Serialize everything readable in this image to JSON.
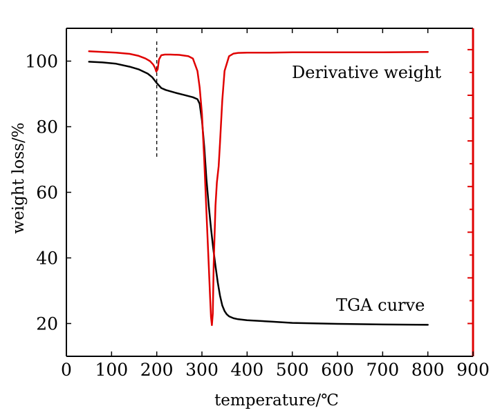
{
  "chart_data": {
    "type": "line",
    "title": "",
    "xlabel": "temperature/℃",
    "ylabel": "weight loss/%",
    "xlim": [
      0,
      900
    ],
    "ylim": [
      10,
      110
    ],
    "x_ticks": [
      0,
      100,
      200,
      300,
      400,
      500,
      600,
      700,
      800,
      900
    ],
    "y_ticks": [
      20,
      40,
      60,
      80,
      100
    ],
    "grid": false,
    "legend": "none",
    "secondary_axis": {
      "side": "right",
      "color": "#e00000",
      "ticks_labeled": false
    },
    "annotations": [
      {
        "text": "Derivative weight",
        "series": "derivative"
      },
      {
        "text": "TGA curve",
        "series": "tga"
      }
    ],
    "marker_line": {
      "x": 200,
      "y_from": 70.5,
      "y_to": 106,
      "style": "dashed"
    },
    "series": [
      {
        "id": "tga",
        "color": "#000000",
        "axis": "left",
        "x": [
          50,
          80,
          110,
          140,
          160,
          180,
          190,
          200,
          210,
          220,
          240,
          260,
          280,
          290,
          295,
          300,
          305,
          310,
          315,
          320,
          325,
          330,
          335,
          340,
          345,
          350,
          355,
          360,
          370,
          380,
          400,
          450,
          500,
          600,
          700,
          800
        ],
        "y": [
          99.8,
          99.6,
          99.2,
          98.3,
          97.5,
          96.2,
          95.1,
          93.3,
          91.8,
          91.2,
          90.4,
          89.7,
          89.0,
          88.4,
          87.0,
          82.0,
          74.0,
          64.0,
          56.0,
          49.0,
          43.0,
          37.5,
          32.5,
          28.5,
          25.5,
          23.8,
          22.8,
          22.2,
          21.6,
          21.3,
          21.0,
          20.6,
          20.2,
          19.9,
          19.7,
          19.6
        ]
      },
      {
        "id": "derivative",
        "color": "#e00000",
        "axis": "right",
        "x": [
          50,
          80,
          110,
          140,
          160,
          175,
          185,
          192,
          196,
          199,
          202,
          205,
          210,
          218,
          230,
          250,
          270,
          280,
          290,
          295,
          300,
          305,
          310,
          315,
          318,
          320,
          322,
          324,
          326,
          330,
          333,
          337,
          340,
          345,
          350,
          360,
          370,
          380,
          400,
          450,
          500,
          600,
          700,
          800
        ],
        "y": [
          103.0,
          102.8,
          102.6,
          102.2,
          101.6,
          100.8,
          100.0,
          99.0,
          98.0,
          96.8,
          97.5,
          100.5,
          101.8,
          102.0,
          102.0,
          101.9,
          101.5,
          100.8,
          97.0,
          92.0,
          84.0,
          70.0,
          54.0,
          38.0,
          28.0,
          22.0,
          19.5,
          23.0,
          38.0,
          56.0,
          63.0,
          68.0,
          75.0,
          88.0,
          97.0,
          101.5,
          102.3,
          102.5,
          102.6,
          102.6,
          102.7,
          102.7,
          102.7,
          102.8
        ]
      }
    ]
  }
}
